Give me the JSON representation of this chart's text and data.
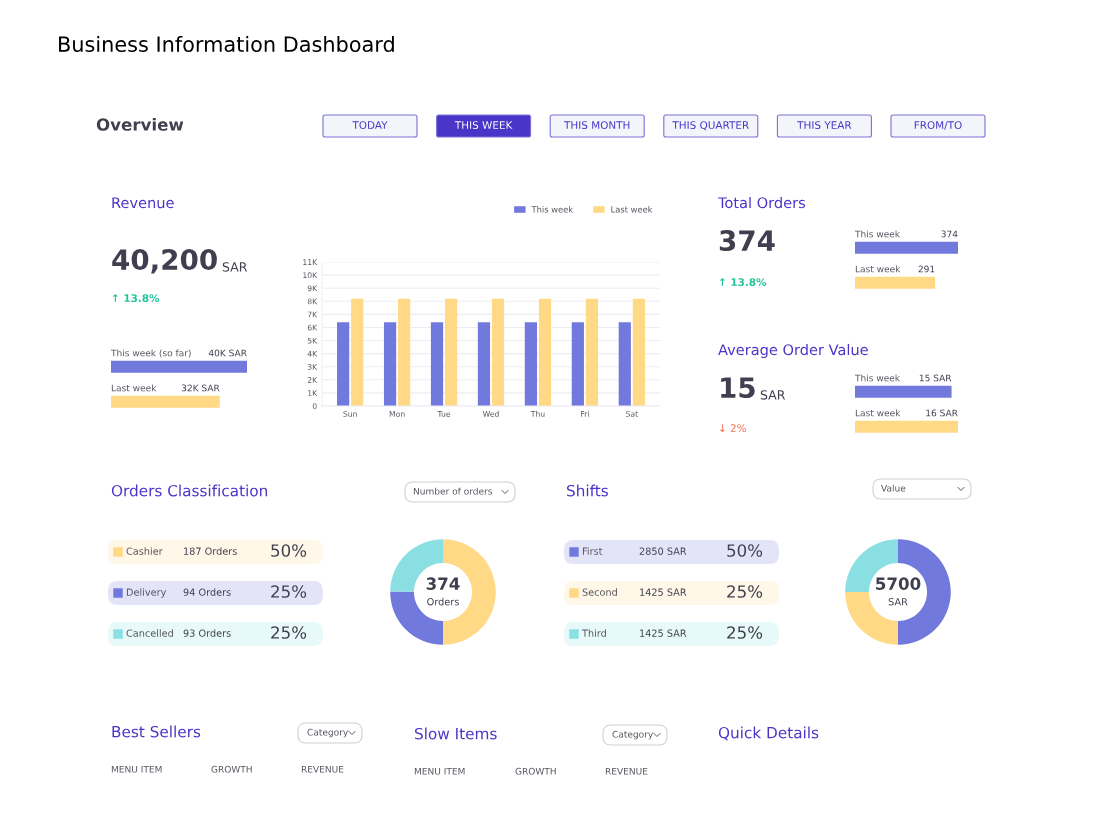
{
  "chart_data": [
    {
      "type": "other",
      "title": "Business Information Dashboard",
      "subtitle": "Overview",
      "annotations": [
        "TODAY",
        "THIS WEEK",
        "THIS MONTH",
        "THIS QUARTER",
        "THIS YEAR",
        "FROM/TO"
      ]
    },
    {
      "type": "bar",
      "categories": [
        "Sun",
        "Mon",
        "Tue",
        "Wed",
        "Thu",
        "Fri",
        "Sat"
      ],
      "series": [
        {
          "name": "This week",
          "color": "#7279dc",
          "values": [
            6400,
            6400,
            6400,
            6400,
            6400,
            6400,
            6400
          ]
        },
        {
          "name": "Last week",
          "color": "#ffd985",
          "values": [
            8200,
            8200,
            8200,
            8200,
            8200,
            8200,
            8200
          ]
        }
      ],
      "ylim": [
        0,
        11000
      ],
      "yticks": [
        0,
        {
          "value": 1000,
          "label": "1K"
        },
        {
          "value": 2000,
          "label": "2K"
        },
        {
          "value": 3000,
          "label": "3K"
        },
        {
          "value": 4000,
          "label": "4K"
        },
        {
          "value": 5000,
          "label": "5K"
        },
        {
          "value": 6000,
          "label": "6K"
        },
        {
          "value": 7000,
          "label": "7K"
        },
        {
          "value": 8000,
          "label": "8K"
        },
        {
          "value": 9000,
          "label": "9K"
        },
        {
          "value": 10000,
          "label": "10K"
        },
        {
          "value": 11000,
          "label": "11K"
        }
      ],
      "grid": "y",
      "legend": "top right"
    },
    {
      "type": "bar",
      "orientation": "horizontal",
      "title": "Revenue",
      "annotations": [
        "40,200",
        "SAR",
        "↑ 13.8%"
      ],
      "categories": [
        "This week (so far)",
        "Last week"
      ],
      "values": [
        40000,
        32000
      ],
      "value_labels": [
        "40K SAR",
        "32K SAR"
      ],
      "colors": [
        "#7279dc",
        "#ffd985"
      ]
    },
    {
      "type": "bar",
      "orientation": "horizontal",
      "title": "Total Orders",
      "annotations": [
        "374",
        "↑ 13.8%"
      ],
      "categories": [
        "This week",
        "Last week"
      ],
      "values": [
        374,
        291
      ],
      "data_labels": true,
      "colors": [
        "#7279dc",
        "#ffd985"
      ]
    },
    {
      "type": "bar",
      "orientation": "horizontal",
      "title": "Average Order Value",
      "annotations": [
        "15",
        "SAR",
        "↓ 2%"
      ],
      "categories": [
        "This week",
        "Last week"
      ],
      "values": [
        15,
        16
      ],
      "value_labels": [
        "15 SAR",
        "16 SAR"
      ],
      "colors": [
        "#7279dc",
        "#ffd985"
      ]
    },
    {
      "type": "donut",
      "title": "Orders Classification",
      "categories": [
        "Cashier",
        "Delivery",
        "Cancelled"
      ],
      "values": [
        187,
        94,
        93
      ],
      "value_labels": [
        "187 Orders",
        "94 Orders",
        "93 Orders"
      ],
      "colors": [
        "#ffd985",
        "#7279dc",
        "#8adfe3"
      ],
      "legend": "left",
      "annotations": [
        "374",
        "Orders",
        "Number of orders",
        "50%",
        "25%",
        "25%"
      ]
    },
    {
      "type": "donut",
      "title": "Shifts",
      "categories": [
        "First",
        "Second",
        "Third"
      ],
      "values": [
        2850,
        1425,
        1425
      ],
      "value_labels": [
        "2850 SAR",
        "1425 SAR",
        "1425 SAR"
      ],
      "colors": [
        "#7279dc",
        "#ffd985",
        "#8adfe3"
      ],
      "legend": "left",
      "annotations": [
        "5700",
        "SAR",
        "Value",
        "50%",
        "25%",
        "25%"
      ]
    },
    {
      "type": "other",
      "title": "Best Sellers",
      "annotations": [
        "Category",
        "MENU ITEM",
        "GROWTH",
        "REVENUE"
      ]
    },
    {
      "type": "other",
      "title": "Slow Items",
      "annotations": [
        "Category",
        "MENU ITEM",
        "GROWTH",
        "REVENUE"
      ]
    },
    {
      "type": "other",
      "title": "Quick Details"
    }
  ]
}
